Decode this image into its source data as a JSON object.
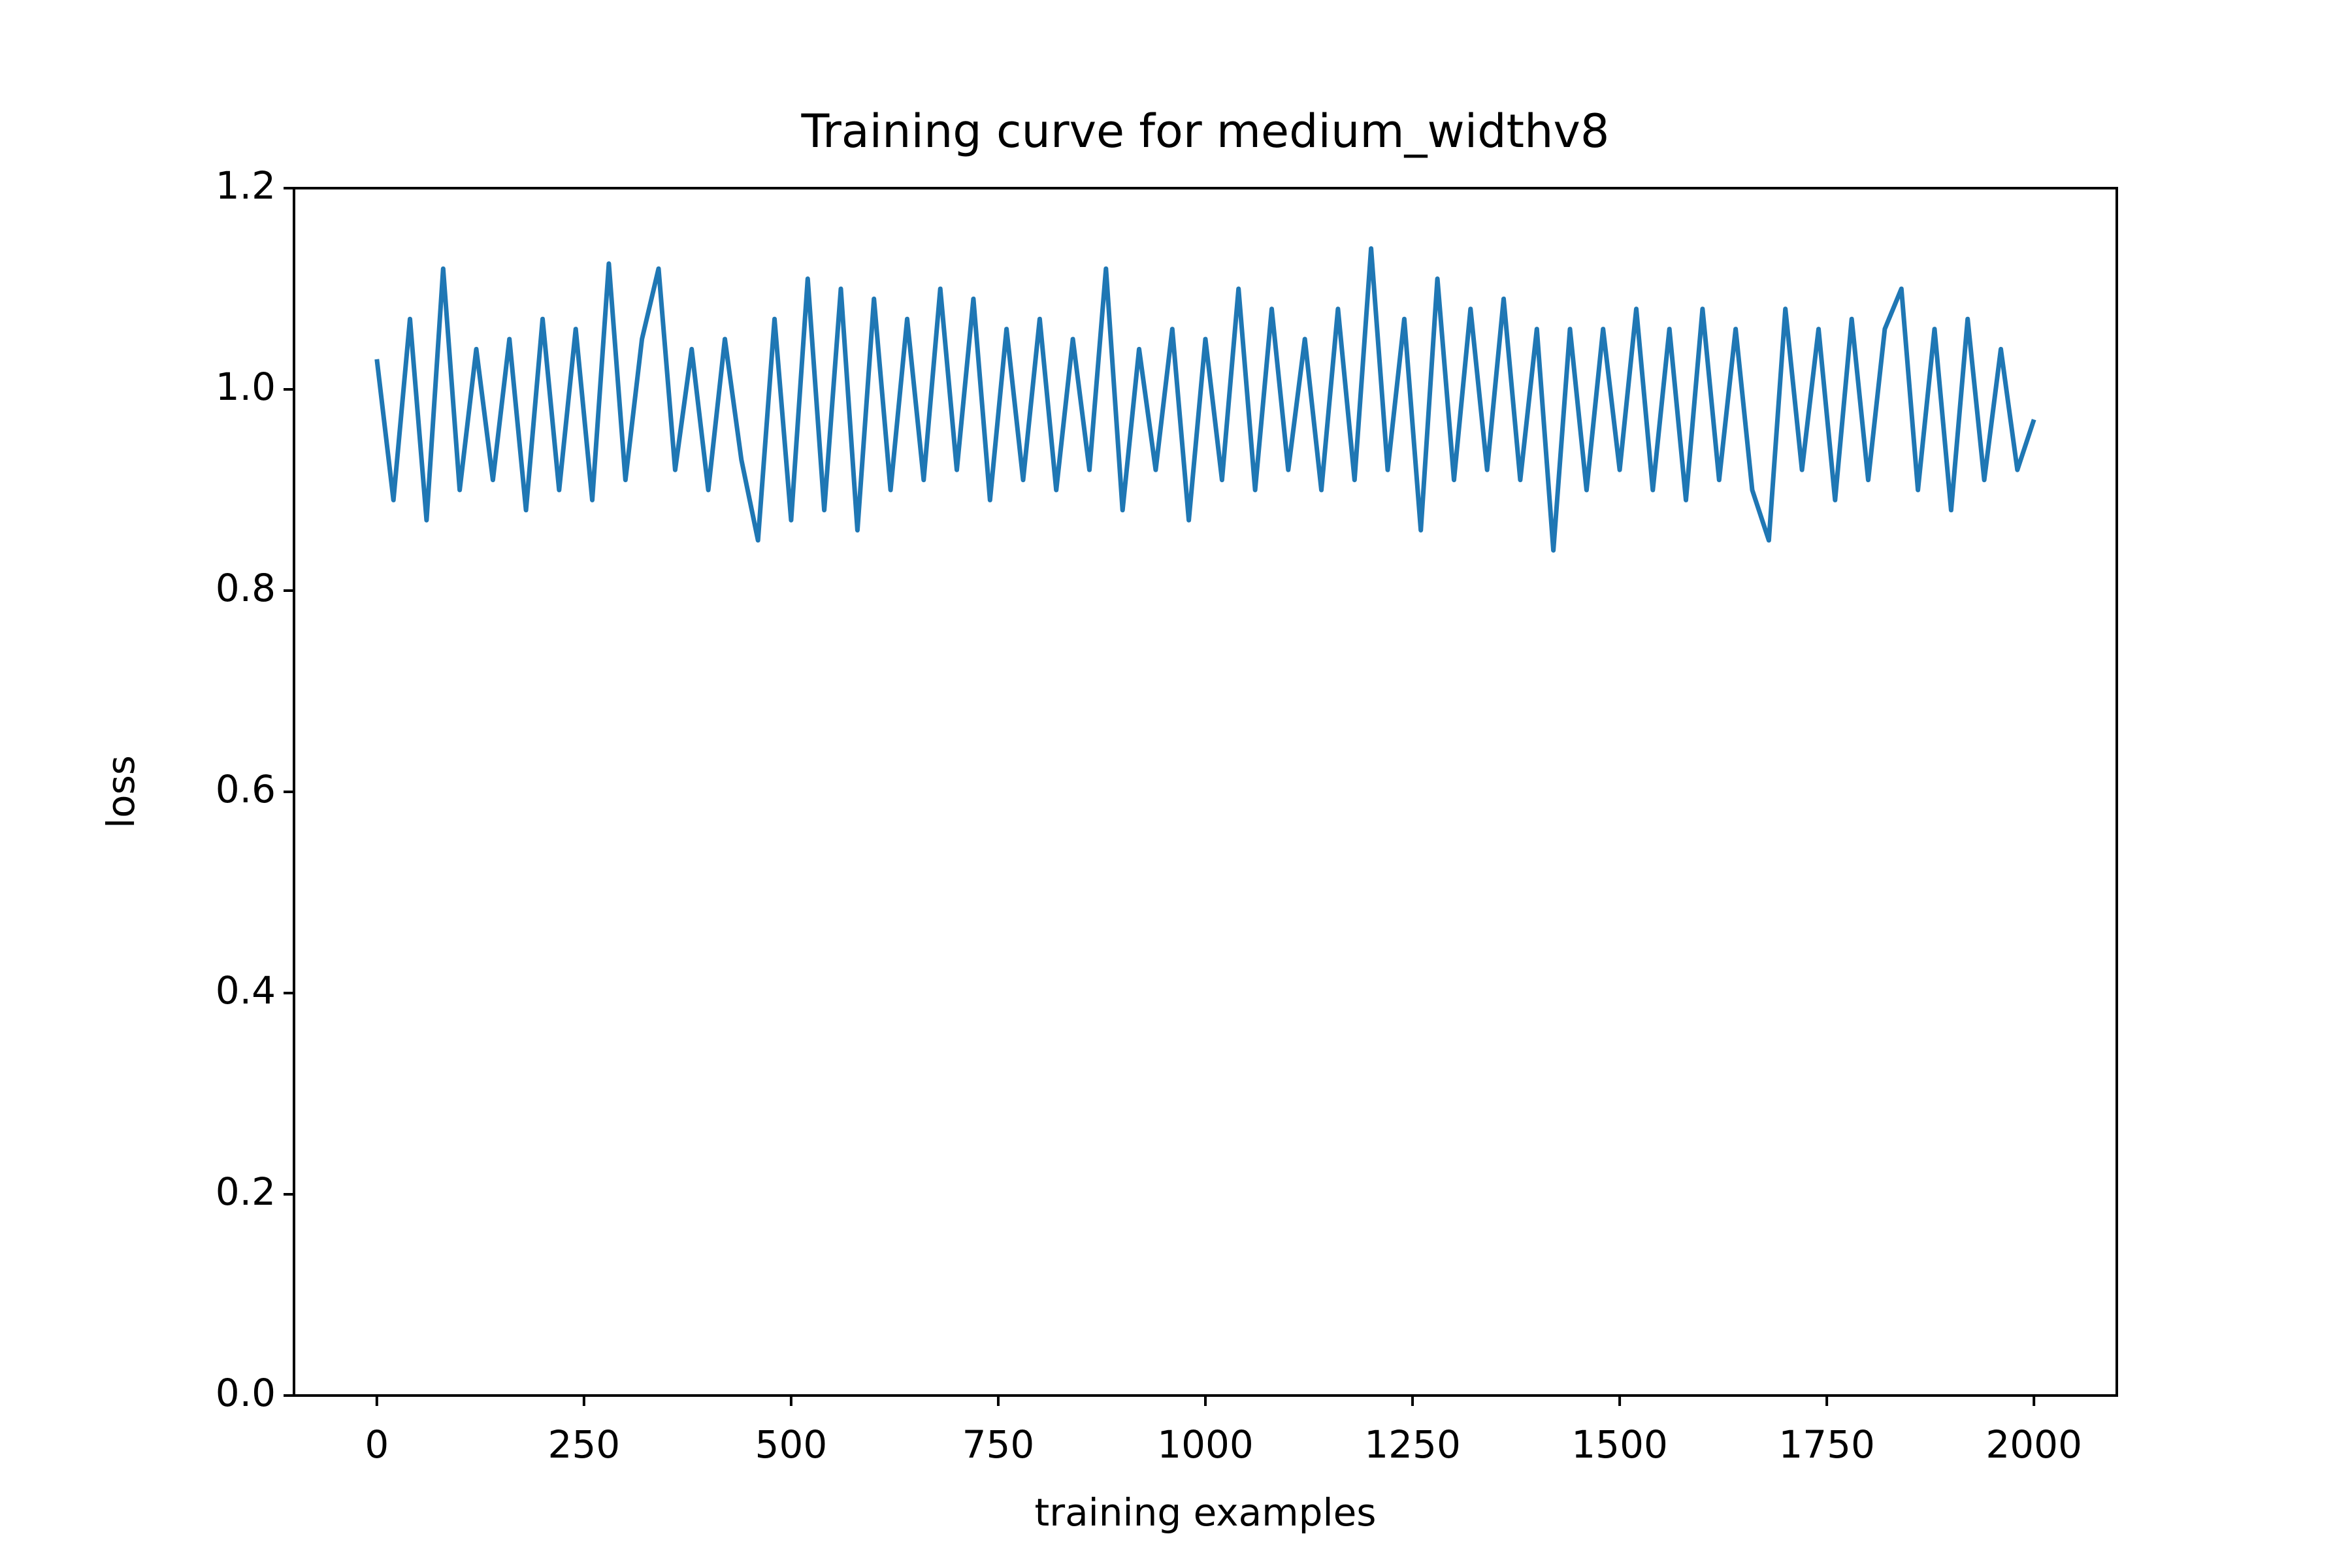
{
  "chart_data": {
    "type": "line",
    "title": "Training curve for medium_widthv8",
    "xlabel": "training examples",
    "ylabel": "loss",
    "x": [
      0,
      20,
      40,
      60,
      80,
      100,
      120,
      140,
      160,
      180,
      200,
      220,
      240,
      260,
      280,
      300,
      320,
      340,
      360,
      380,
      400,
      420,
      440,
      460,
      480,
      500,
      520,
      540,
      560,
      580,
      600,
      620,
      640,
      660,
      680,
      700,
      720,
      740,
      760,
      780,
      800,
      820,
      840,
      860,
      880,
      900,
      920,
      940,
      960,
      980,
      1000,
      1020,
      1040,
      1060,
      1080,
      1100,
      1120,
      1140,
      1160,
      1180,
      1200,
      1220,
      1240,
      1260,
      1280,
      1300,
      1320,
      1340,
      1360,
      1380,
      1400,
      1420,
      1440,
      1460,
      1480,
      1500,
      1520,
      1540,
      1560,
      1580,
      1600,
      1620,
      1640,
      1660,
      1680,
      1700,
      1720,
      1740,
      1760,
      1780,
      1800,
      1820,
      1840,
      1860,
      1880,
      1900,
      1920,
      1940,
      1960,
      1980,
      2000
    ],
    "series": [
      {
        "name": "loss",
        "color": "#1f77b4",
        "values": [
          1.03,
          0.89,
          1.07,
          0.87,
          1.12,
          0.9,
          1.04,
          0.91,
          1.05,
          0.88,
          1.07,
          0.9,
          1.06,
          0.89,
          1.125,
          0.91,
          1.05,
          1.12,
          0.92,
          1.04,
          0.9,
          1.05,
          0.93,
          0.85,
          1.07,
          0.87,
          1.11,
          0.88,
          1.1,
          0.86,
          1.09,
          0.9,
          1.07,
          0.91,
          1.1,
          0.92,
          1.09,
          0.89,
          1.06,
          0.91,
          1.07,
          0.9,
          1.05,
          0.92,
          1.12,
          0.88,
          1.04,
          0.92,
          1.06,
          0.87,
          1.05,
          0.91,
          1.1,
          0.9,
          1.08,
          0.92,
          1.05,
          0.9,
          1.08,
          0.91,
          1.14,
          0.92,
          1.07,
          0.86,
          1.11,
          0.91,
          1.08,
          0.92,
          1.09,
          0.91,
          1.06,
          0.84,
          1.06,
          0.9,
          1.06,
          0.92,
          1.08,
          0.9,
          1.06,
          0.89,
          1.08,
          0.91,
          1.06,
          0.9,
          0.85,
          1.08,
          0.92,
          1.06,
          0.89,
          1.07,
          0.91,
          1.06,
          1.1,
          0.9,
          1.06,
          0.88,
          1.07,
          0.91,
          1.04,
          0.92,
          0.97
        ]
      }
    ],
    "xlim": [
      -100,
      2100
    ],
    "xticks": [
      0,
      250,
      500,
      750,
      1000,
      1250,
      1500,
      1750,
      2000
    ],
    "ylim": [
      0,
      1.2
    ],
    "yticks": [
      {
        "value": 0,
        "label": "0.0"
      },
      0.2,
      0.4,
      0.6,
      0.8,
      {
        "value": 1,
        "label": "1.0"
      },
      1.2
    ],
    "grid": false
  }
}
